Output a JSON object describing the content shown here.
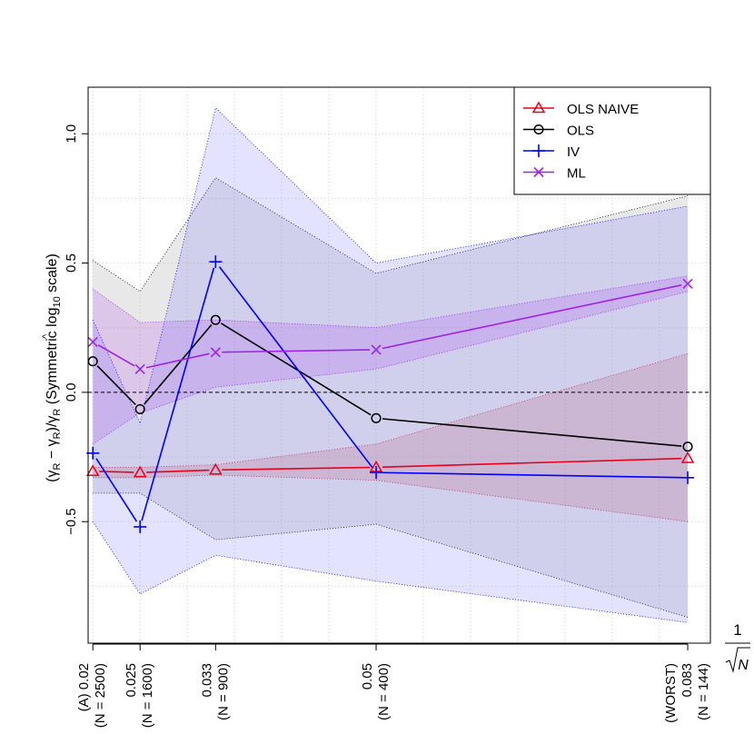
{
  "chart_data": {
    "type": "line",
    "ylabel_parts": {
      "open": "(",
      "hat": "^",
      "gamma": "γ",
      "sub": "R",
      "mid": " − ",
      "slash": ")/",
      "scale_text": " (Symmetric log",
      "log_base": "10",
      "scale_close": " scale)"
    },
    "ylim": [
      -0.97,
      1.18
    ],
    "yticks": [
      -0.5,
      0.0,
      0.5,
      1.0
    ],
    "ytick_labels": [
      "−0.5",
      "0.0",
      "0.5",
      "1.0"
    ],
    "xlim": [
      0.0195,
      0.0854
    ],
    "x": [
      0.02,
      0.025,
      0.033,
      0.05,
      0.083
    ],
    "xtick_labels": [
      [
        "(A) 0.02",
        "(N = 2500)"
      ],
      [
        "0.025",
        "(N = 1600)"
      ],
      [
        "0.033",
        "(N = 900)"
      ],
      [
        "0.05",
        "(N = 400)"
      ],
      [
        "(WORST)",
        "0.083",
        "(N = 144)"
      ]
    ],
    "xlabel_parts": {
      "numerator": "1",
      "radicand": "N"
    },
    "grid": true,
    "reference_line": 0.0,
    "legend_position": "top-right",
    "series": [
      {
        "name": "OLS NAIVE",
        "color": "#e8001c",
        "marker": "triangle",
        "values": [
          -0.305,
          -0.31,
          -0.3,
          -0.29,
          -0.255
        ],
        "band_upper": [
          -0.29,
          -0.29,
          -0.28,
          -0.2,
          0.15
        ],
        "band_lower": [
          -0.33,
          -0.33,
          -0.32,
          -0.34,
          -0.5
        ],
        "band_fill": "rgba(220,60,70,0.20)"
      },
      {
        "name": "OLS",
        "color": "#000000",
        "marker": "circle",
        "values": [
          0.12,
          -0.065,
          0.28,
          -0.1,
          -0.21
        ],
        "band_upper": [
          0.51,
          0.39,
          0.83,
          0.46,
          0.76
        ],
        "band_lower": [
          -0.39,
          -0.39,
          -0.57,
          -0.51,
          -0.87
        ],
        "band_fill": "rgba(150,150,150,0.22)"
      },
      {
        "name": "IV",
        "color": "#0000ff",
        "marker": "plus",
        "values": [
          -0.235,
          -0.52,
          0.505,
          -0.31,
          -0.33
        ],
        "band_upper": [
          0.28,
          -0.12,
          1.1,
          0.5,
          0.72
        ],
        "band_lower": [
          -0.5,
          -0.78,
          -0.63,
          -0.73,
          -0.89
        ],
        "band_fill": "rgba(100,100,255,0.18)"
      },
      {
        "name": "ML",
        "color": "#a020f0",
        "marker": "cross",
        "values": [
          0.195,
          0.09,
          0.155,
          0.165,
          0.42
        ],
        "band_upper": [
          0.4,
          0.27,
          0.28,
          0.25,
          0.45
        ],
        "band_lower": [
          -0.2,
          -0.08,
          0.02,
          0.09,
          0.39
        ],
        "band_fill": "rgba(160,32,240,0.16)"
      }
    ]
  }
}
